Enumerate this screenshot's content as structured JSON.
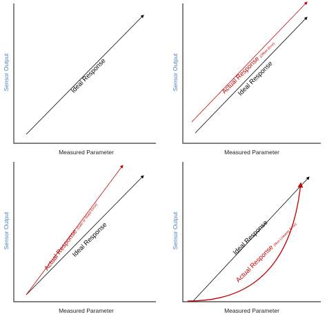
{
  "panels": [
    {
      "x_label": "Measured Parameter",
      "y_label": "Sensor Output",
      "lines": [
        {
          "label": "Ideal Response"
        }
      ]
    },
    {
      "x_label": "Measured Parameter",
      "y_label": "Sensor Output",
      "lines": [
        {
          "label": "Ideal Response"
        },
        {
          "label": "Actual Response",
          "note": "(Offset Error)"
        }
      ]
    },
    {
      "x_label": "Measured Parameter",
      "y_label": "Sensor Output",
      "lines": [
        {
          "label": "Ideal Response"
        },
        {
          "label": "Actual Response",
          "note": "(Gain or Slope Error)"
        }
      ]
    },
    {
      "x_label": "Measured Parameter",
      "y_label": "Sensor Output",
      "lines": [
        {
          "label": "Ideal Response"
        },
        {
          "label": "Actual Response",
          "note": "(Non Linearity Error)"
        }
      ]
    }
  ]
}
